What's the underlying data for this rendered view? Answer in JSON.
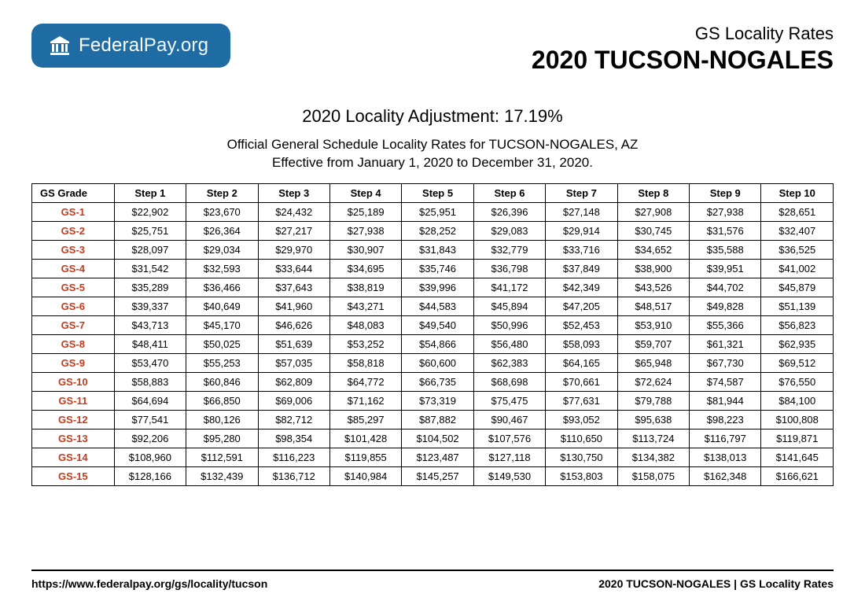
{
  "logo": {
    "strong": "Federal",
    "light": "Pay.org"
  },
  "header": {
    "small": "GS Locality Rates",
    "big": "2020 TUCSON-NOGALES"
  },
  "subtitle": {
    "adjustment": "2020 Locality Adjustment: 17.19%",
    "line1": "Official General Schedule Locality Rates for TUCSON-NOGALES, AZ",
    "line2": "Effective from January 1, 2020 to December 31, 2020."
  },
  "table": {
    "columns": [
      "GS Grade",
      "Step 1",
      "Step 2",
      "Step 3",
      "Step 4",
      "Step 5",
      "Step 6",
      "Step 7",
      "Step 8",
      "Step 9",
      "Step 10"
    ],
    "rows": [
      [
        "GS-1",
        "$22,902",
        "$23,670",
        "$24,432",
        "$25,189",
        "$25,951",
        "$26,396",
        "$27,148",
        "$27,908",
        "$27,938",
        "$28,651"
      ],
      [
        "GS-2",
        "$25,751",
        "$26,364",
        "$27,217",
        "$27,938",
        "$28,252",
        "$29,083",
        "$29,914",
        "$30,745",
        "$31,576",
        "$32,407"
      ],
      [
        "GS-3",
        "$28,097",
        "$29,034",
        "$29,970",
        "$30,907",
        "$31,843",
        "$32,779",
        "$33,716",
        "$34,652",
        "$35,588",
        "$36,525"
      ],
      [
        "GS-4",
        "$31,542",
        "$32,593",
        "$33,644",
        "$34,695",
        "$35,746",
        "$36,798",
        "$37,849",
        "$38,900",
        "$39,951",
        "$41,002"
      ],
      [
        "GS-5",
        "$35,289",
        "$36,466",
        "$37,643",
        "$38,819",
        "$39,996",
        "$41,172",
        "$42,349",
        "$43,526",
        "$44,702",
        "$45,879"
      ],
      [
        "GS-6",
        "$39,337",
        "$40,649",
        "$41,960",
        "$43,271",
        "$44,583",
        "$45,894",
        "$47,205",
        "$48,517",
        "$49,828",
        "$51,139"
      ],
      [
        "GS-7",
        "$43,713",
        "$45,170",
        "$46,626",
        "$48,083",
        "$49,540",
        "$50,996",
        "$52,453",
        "$53,910",
        "$55,366",
        "$56,823"
      ],
      [
        "GS-8",
        "$48,411",
        "$50,025",
        "$51,639",
        "$53,252",
        "$54,866",
        "$56,480",
        "$58,093",
        "$59,707",
        "$61,321",
        "$62,935"
      ],
      [
        "GS-9",
        "$53,470",
        "$55,253",
        "$57,035",
        "$58,818",
        "$60,600",
        "$62,383",
        "$64,165",
        "$65,948",
        "$67,730",
        "$69,512"
      ],
      [
        "GS-10",
        "$58,883",
        "$60,846",
        "$62,809",
        "$64,772",
        "$66,735",
        "$68,698",
        "$70,661",
        "$72,624",
        "$74,587",
        "$76,550"
      ],
      [
        "GS-11",
        "$64,694",
        "$66,850",
        "$69,006",
        "$71,162",
        "$73,319",
        "$75,475",
        "$77,631",
        "$79,788",
        "$81,944",
        "$84,100"
      ],
      [
        "GS-12",
        "$77,541",
        "$80,126",
        "$82,712",
        "$85,297",
        "$87,882",
        "$90,467",
        "$93,052",
        "$95,638",
        "$98,223",
        "$100,808"
      ],
      [
        "GS-13",
        "$92,206",
        "$95,280",
        "$98,354",
        "$101,428",
        "$104,502",
        "$107,576",
        "$110,650",
        "$113,724",
        "$116,797",
        "$119,871"
      ],
      [
        "GS-14",
        "$108,960",
        "$112,591",
        "$116,223",
        "$119,855",
        "$123,487",
        "$127,118",
        "$130,750",
        "$134,382",
        "$138,013",
        "$141,645"
      ],
      [
        "GS-15",
        "$128,166",
        "$132,439",
        "$136,712",
        "$140,984",
        "$145,257",
        "$149,530",
        "$153,803",
        "$158,075",
        "$162,348",
        "$166,621"
      ]
    ],
    "grade_color": "#c53b1b",
    "border_color": "#000000",
    "font_size": 13
  },
  "footer": {
    "left": "https://www.federalpay.org/gs/locality/tucson",
    "right": "2020 TUCSON-NOGALES | GS Locality Rates"
  },
  "colors": {
    "badge_bg": "#1f6ba3",
    "badge_fg": "#ffffff",
    "page_bg": "#ffffff"
  }
}
